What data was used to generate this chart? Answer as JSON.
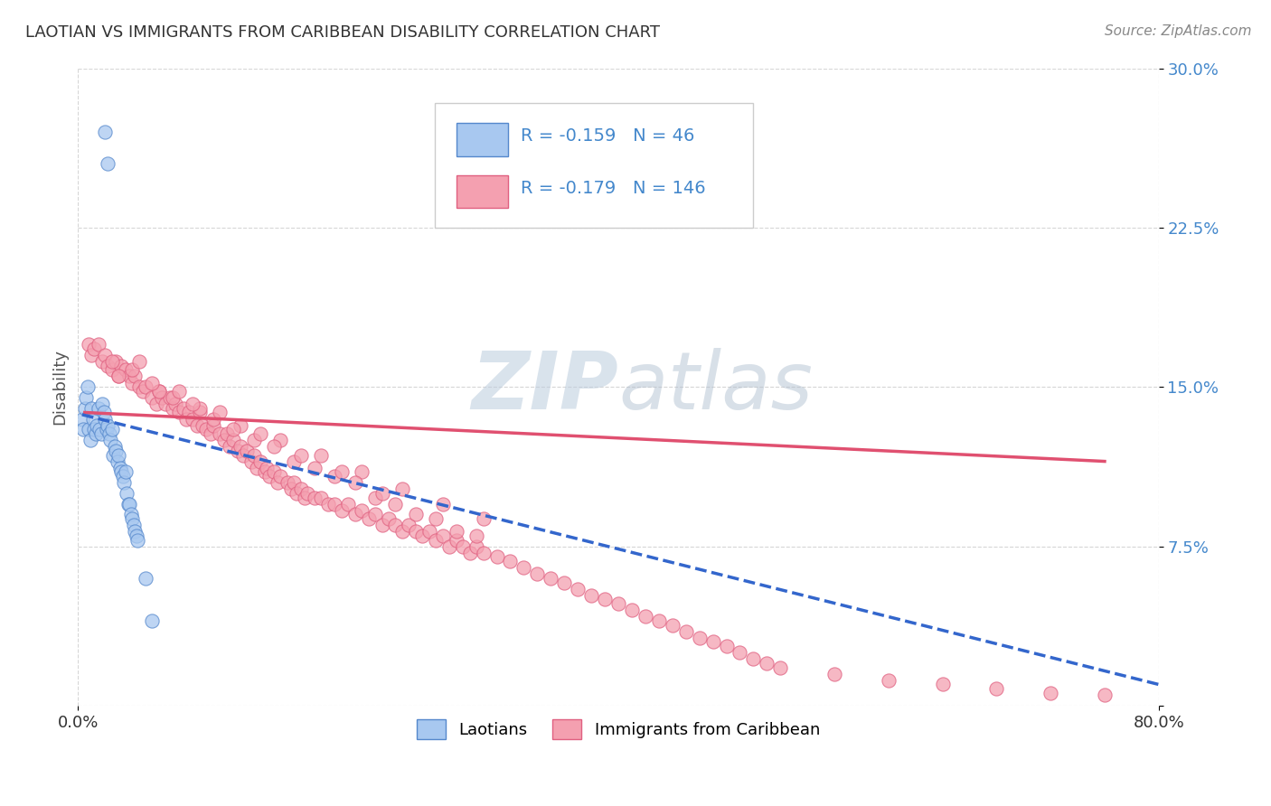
{
  "title": "LAOTIAN VS IMMIGRANTS FROM CARIBBEAN DISABILITY CORRELATION CHART",
  "source": "Source: ZipAtlas.com",
  "ylabel": "Disability",
  "x_min": 0.0,
  "x_max": 0.8,
  "y_min": 0.0,
  "y_max": 0.3,
  "x_tick_labels": [
    "0.0%",
    "80.0%"
  ],
  "y_ticks": [
    0.0,
    0.075,
    0.15,
    0.225,
    0.3
  ],
  "y_tick_labels": [
    "",
    "7.5%",
    "15.0%",
    "22.5%",
    "30.0%"
  ],
  "legend_r1": "-0.159",
  "legend_n1": "46",
  "legend_r2": "-0.179",
  "legend_n2": "146",
  "laotian_color": "#A8C8F0",
  "caribbean_color": "#F4A0B0",
  "laotian_edge_color": "#5588CC",
  "caribbean_edge_color": "#E06080",
  "laotian_line_color": "#3366CC",
  "caribbean_line_color": "#E05070",
  "watermark_color": "#CCDDEE",
  "background_color": "#FFFFFF",
  "laotian_x": [
    0.02,
    0.022,
    0.003,
    0.004,
    0.005,
    0.006,
    0.007,
    0.008,
    0.009,
    0.01,
    0.011,
    0.012,
    0.013,
    0.014,
    0.015,
    0.016,
    0.017,
    0.018,
    0.019,
    0.02,
    0.021,
    0.022,
    0.023,
    0.024,
    0.025,
    0.026,
    0.027,
    0.028,
    0.029,
    0.03,
    0.031,
    0.032,
    0.033,
    0.034,
    0.035,
    0.036,
    0.037,
    0.038,
    0.039,
    0.04,
    0.041,
    0.042,
    0.043,
    0.044,
    0.05,
    0.055
  ],
  "laotian_y": [
    0.27,
    0.255,
    0.135,
    0.13,
    0.14,
    0.145,
    0.15,
    0.13,
    0.125,
    0.14,
    0.135,
    0.13,
    0.128,
    0.132,
    0.14,
    0.13,
    0.128,
    0.142,
    0.138,
    0.135,
    0.13,
    0.132,
    0.128,
    0.125,
    0.13,
    0.118,
    0.122,
    0.12,
    0.115,
    0.118,
    0.112,
    0.11,
    0.108,
    0.105,
    0.11,
    0.1,
    0.095,
    0.095,
    0.09,
    0.088,
    0.085,
    0.082,
    0.08,
    0.078,
    0.06,
    0.04
  ],
  "caribbean_x": [
    0.008,
    0.01,
    0.012,
    0.015,
    0.018,
    0.02,
    0.022,
    0.025,
    0.028,
    0.03,
    0.032,
    0.035,
    0.038,
    0.04,
    0.042,
    0.045,
    0.048,
    0.05,
    0.055,
    0.058,
    0.06,
    0.062,
    0.065,
    0.068,
    0.07,
    0.072,
    0.075,
    0.078,
    0.08,
    0.082,
    0.085,
    0.088,
    0.09,
    0.092,
    0.095,
    0.098,
    0.1,
    0.105,
    0.108,
    0.11,
    0.112,
    0.115,
    0.118,
    0.12,
    0.122,
    0.125,
    0.128,
    0.13,
    0.132,
    0.135,
    0.138,
    0.14,
    0.142,
    0.145,
    0.148,
    0.15,
    0.155,
    0.158,
    0.16,
    0.162,
    0.165,
    0.168,
    0.17,
    0.175,
    0.18,
    0.185,
    0.19,
    0.195,
    0.2,
    0.205,
    0.21,
    0.215,
    0.22,
    0.225,
    0.23,
    0.235,
    0.24,
    0.245,
    0.25,
    0.255,
    0.26,
    0.265,
    0.27,
    0.275,
    0.28,
    0.285,
    0.29,
    0.295,
    0.3,
    0.31,
    0.32,
    0.33,
    0.34,
    0.35,
    0.36,
    0.37,
    0.38,
    0.39,
    0.4,
    0.41,
    0.42,
    0.43,
    0.44,
    0.45,
    0.46,
    0.47,
    0.48,
    0.49,
    0.5,
    0.51,
    0.03,
    0.06,
    0.09,
    0.12,
    0.15,
    0.18,
    0.21,
    0.24,
    0.27,
    0.3,
    0.025,
    0.055,
    0.085,
    0.115,
    0.145,
    0.175,
    0.205,
    0.235,
    0.265,
    0.295,
    0.04,
    0.07,
    0.1,
    0.13,
    0.16,
    0.19,
    0.22,
    0.25,
    0.28,
    0.045,
    0.075,
    0.105,
    0.135,
    0.165,
    0.195,
    0.225,
    0.52,
    0.56,
    0.6,
    0.64,
    0.68,
    0.72,
    0.76
  ],
  "caribbean_y": [
    0.17,
    0.165,
    0.168,
    0.17,
    0.162,
    0.165,
    0.16,
    0.158,
    0.162,
    0.155,
    0.16,
    0.158,
    0.155,
    0.152,
    0.155,
    0.15,
    0.148,
    0.15,
    0.145,
    0.142,
    0.148,
    0.145,
    0.142,
    0.145,
    0.14,
    0.142,
    0.138,
    0.14,
    0.135,
    0.138,
    0.135,
    0.132,
    0.138,
    0.132,
    0.13,
    0.128,
    0.132,
    0.128,
    0.125,
    0.128,
    0.122,
    0.125,
    0.12,
    0.122,
    0.118,
    0.12,
    0.115,
    0.118,
    0.112,
    0.115,
    0.11,
    0.112,
    0.108,
    0.11,
    0.105,
    0.108,
    0.105,
    0.102,
    0.105,
    0.1,
    0.102,
    0.098,
    0.1,
    0.098,
    0.098,
    0.095,
    0.095,
    0.092,
    0.095,
    0.09,
    0.092,
    0.088,
    0.09,
    0.085,
    0.088,
    0.085,
    0.082,
    0.085,
    0.082,
    0.08,
    0.082,
    0.078,
    0.08,
    0.075,
    0.078,
    0.075,
    0.072,
    0.075,
    0.072,
    0.07,
    0.068,
    0.065,
    0.062,
    0.06,
    0.058,
    0.055,
    0.052,
    0.05,
    0.048,
    0.045,
    0.042,
    0.04,
    0.038,
    0.035,
    0.032,
    0.03,
    0.028,
    0.025,
    0.022,
    0.02,
    0.155,
    0.148,
    0.14,
    0.132,
    0.125,
    0.118,
    0.11,
    0.102,
    0.095,
    0.088,
    0.162,
    0.152,
    0.142,
    0.13,
    0.122,
    0.112,
    0.105,
    0.095,
    0.088,
    0.08,
    0.158,
    0.145,
    0.135,
    0.125,
    0.115,
    0.108,
    0.098,
    0.09,
    0.082,
    0.162,
    0.148,
    0.138,
    0.128,
    0.118,
    0.11,
    0.1,
    0.018,
    0.015,
    0.012,
    0.01,
    0.008,
    0.006,
    0.005
  ],
  "lao_line_x": [
    0.003,
    0.8
  ],
  "lao_line_y": [
    0.137,
    0.01
  ],
  "car_line_x": [
    0.005,
    0.76
  ],
  "car_line_y": [
    0.138,
    0.115
  ]
}
